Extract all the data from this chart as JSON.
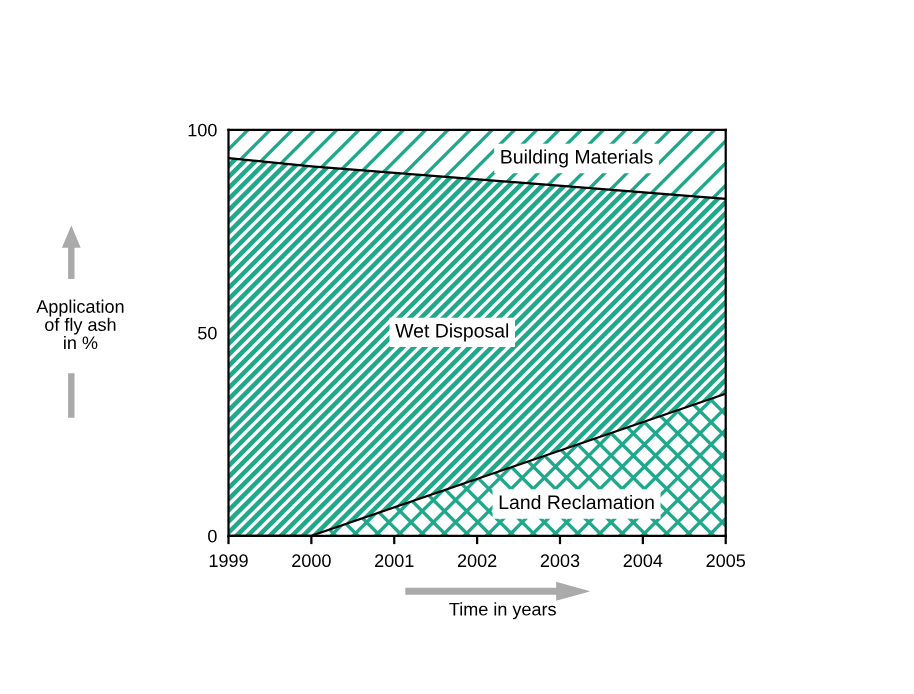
{
  "chart_data": {
    "type": "area",
    "stacked": true,
    "xlabel": "Time in years",
    "ylabel": "Application\nof fly ash\nin %",
    "x": [
      1999,
      2000,
      2005
    ],
    "series": [
      {
        "name": "Land Reclamation",
        "color": "#1fa88b",
        "values": [
          0,
          0,
          35
        ]
      },
      {
        "name": "Wet Disposal",
        "color": "#1fa88b",
        "values": [
          93,
          91,
          48
        ]
      },
      {
        "name": "Building Materials",
        "color": "#1fa88b",
        "values": [
          7,
          9,
          17
        ]
      }
    ],
    "xlim": [
      1999,
      2005
    ],
    "xticks": [
      1999,
      2000,
      2001,
      2002,
      2003,
      2004,
      2005
    ],
    "ylim": [
      0,
      100
    ],
    "yticks": [
      0,
      50,
      100
    ],
    "grid": false,
    "legend": false
  }
}
